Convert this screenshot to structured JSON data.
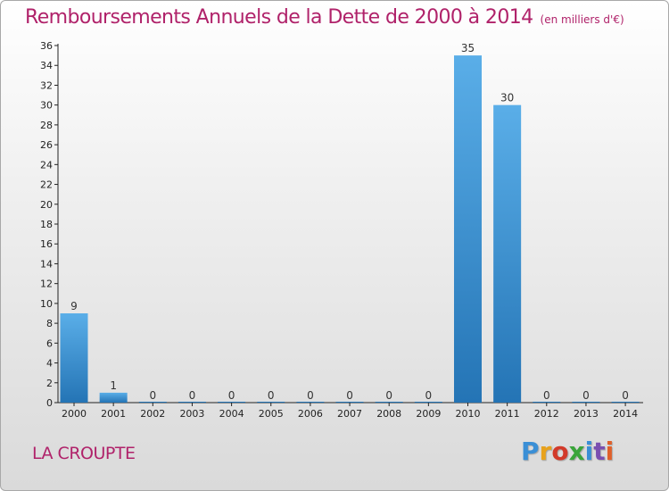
{
  "header": {
    "title": "Remboursements Annuels de la Dette de 2000 à 2014",
    "unit": "(en milliers d'€)"
  },
  "footer": {
    "city": "LA CROUPTE",
    "logo_text": "Proxiti",
    "logo_colors": [
      "#3a8fd6",
      "#e8a21c",
      "#d23a2a",
      "#3aa53a",
      "#3a8fd6",
      "#7a4fb0",
      "#e0602a"
    ]
  },
  "chart_data": {
    "type": "bar",
    "title": "Remboursements Annuels de la Dette de 2000 à 2014",
    "xlabel": "",
    "ylabel": "",
    "categories": [
      "2000",
      "2001",
      "2002",
      "2003",
      "2004",
      "2005",
      "2006",
      "2007",
      "2008",
      "2009",
      "2010",
      "2011",
      "2012",
      "2013",
      "2014"
    ],
    "values": [
      9,
      1,
      0,
      0,
      0,
      0,
      0,
      0,
      0,
      0,
      35,
      30,
      0,
      0,
      0
    ],
    "data_labels": [
      "9",
      "1",
      "0",
      "0",
      "0",
      "0",
      "0",
      "0",
      "0",
      "0",
      "35",
      "30",
      "0",
      "0",
      "0"
    ],
    "ylim": [
      0,
      36
    ],
    "yticks": [
      0,
      2,
      4,
      6,
      8,
      10,
      12,
      14,
      16,
      18,
      20,
      22,
      24,
      26,
      28,
      30,
      32,
      34,
      36
    ],
    "grid": false,
    "legend": "none",
    "bar_color_top": "#5aaee8",
    "bar_color_bottom": "#2474b5"
  }
}
